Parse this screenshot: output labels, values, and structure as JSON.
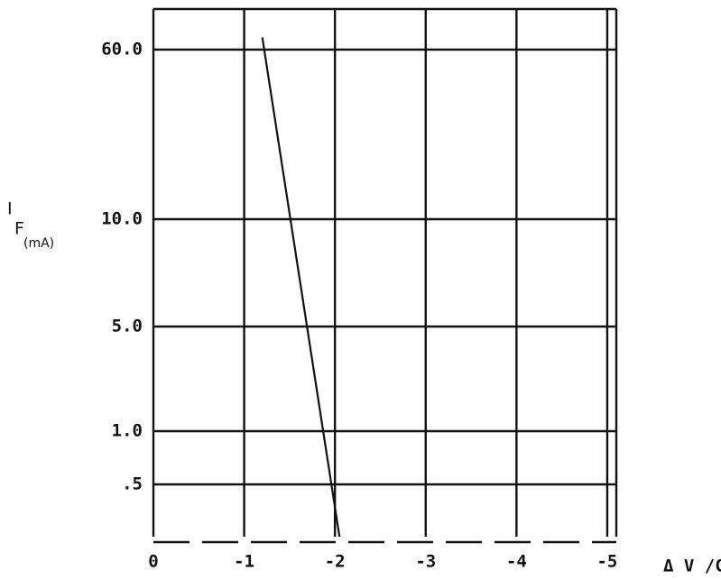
{
  "chart_data": {
    "type": "line",
    "y_label": "I",
    "y_label_sub": "F",
    "y_label_unit": "(mA)",
    "x_label": "Δ V /C",
    "x": [
      -1.2,
      -2.05
    ],
    "series": [
      {
        "color": "#111111",
        "values": [
          63,
          0
        ]
      }
    ],
    "xlim": [
      0,
      -5.1
    ],
    "xticks": [
      0,
      -1,
      -2,
      -3,
      -4,
      -5
    ],
    "ylim": [
      0,
      70
    ],
    "yticks": [
      {
        "value": 0.5,
        "label": ".5"
      },
      {
        "value": 1,
        "label": "1.0"
      },
      {
        "value": 5,
        "label": "5.0"
      },
      {
        "value": 10,
        "label": "10.0"
      },
      {
        "value": 60,
        "label": "60.0"
      }
    ],
    "grid": true
  }
}
